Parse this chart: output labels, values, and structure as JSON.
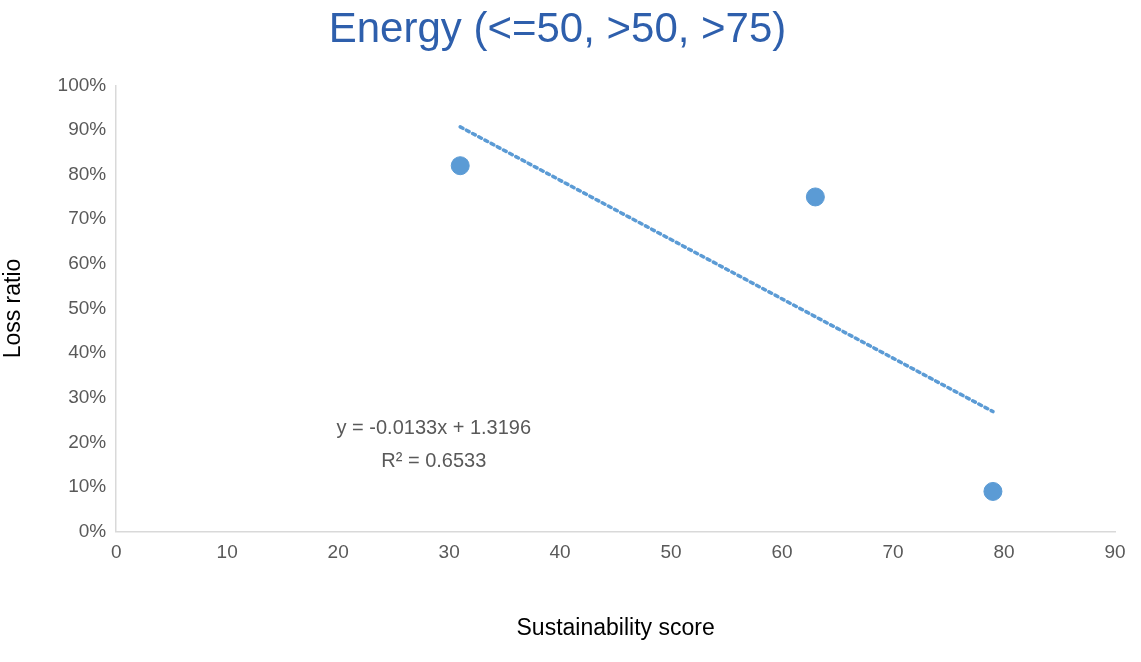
{
  "chart_data": {
    "type": "scatter",
    "title": "Energy (<=50, >50, >75)",
    "xlabel": "Sustainability score",
    "ylabel": "Loss ratio",
    "series": [
      {
        "color": "#5b9bd5",
        "x": [
          31,
          63,
          79
        ],
        "values": [
          82,
          75,
          9
        ],
        "marker": "circle"
      },
      {
        "type": "line",
        "color": "#5b9bd5",
        "x": [
          31,
          79
        ],
        "values": [
          90.7,
          26.9
        ],
        "line_style": "dotted",
        "marker": "none"
      }
    ],
    "xlim": [
      0,
      90
    ],
    "xticks": [
      0,
      10,
      20,
      30,
      40,
      50,
      60,
      70,
      80,
      90
    ],
    "ylim": [
      0,
      100
    ],
    "yticks": [
      {
        "value": 0,
        "label": "0%"
      },
      {
        "value": 10,
        "label": "10%"
      },
      {
        "value": 20,
        "label": "20%"
      },
      {
        "value": 30,
        "label": "30%"
      },
      {
        "value": 40,
        "label": "40%"
      },
      {
        "value": 50,
        "label": "50%"
      },
      {
        "value": 60,
        "label": "60%"
      },
      {
        "value": 70,
        "label": "70%"
      },
      {
        "value": 80,
        "label": "80%"
      },
      {
        "value": 90,
        "label": "90%"
      },
      {
        "value": 100,
        "label": "100%"
      }
    ],
    "annotations": [
      "y = -0.0133x + 1.3196",
      "R² = 0.6533"
    ],
    "grid": false,
    "legend": false
  }
}
